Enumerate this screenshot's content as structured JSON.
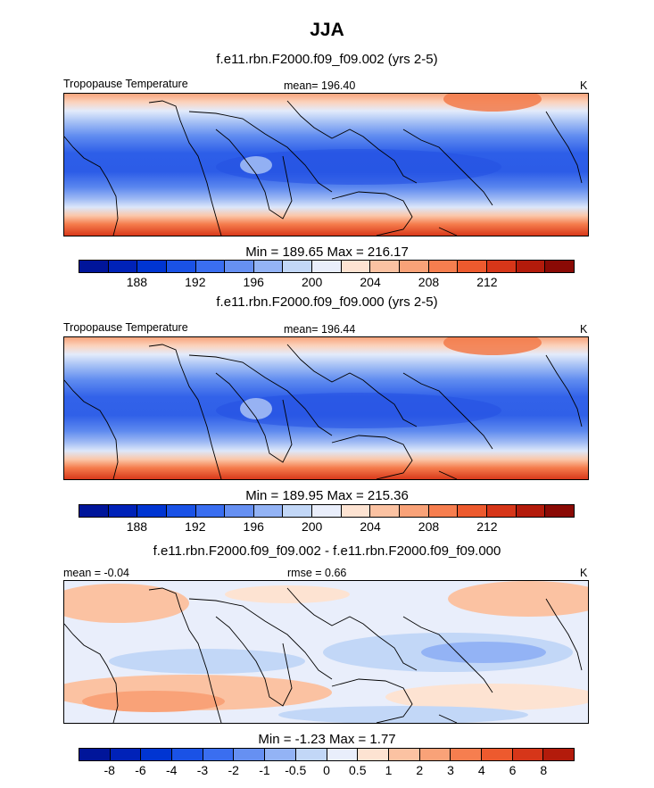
{
  "figure_title": "JJA",
  "colorbar_temp_colors": [
    "#00159a",
    "#0022b8",
    "#0035d2",
    "#1a52e6",
    "#3a6ef0",
    "#6690f2",
    "#93b3f5",
    "#c2d7f7",
    "#e9eefb",
    "#fde3d2",
    "#fbc2a2",
    "#f9a278",
    "#f67e4f",
    "#ed5a2e",
    "#d63619",
    "#b31b0b",
    "#8a0a05"
  ],
  "colorbar_diff_colors": [
    "#00159a",
    "#0022b8",
    "#0035d2",
    "#1a52e6",
    "#3a6ef0",
    "#6690f2",
    "#93b3f5",
    "#c2d7f7",
    "#e9eefb",
    "#fde3d2",
    "#fbc2a2",
    "#f9a278",
    "#f67e4f",
    "#ed5a2e",
    "#d63619",
    "#b31b0b",
    "#8a0a05"
  ],
  "chart_data": [
    {
      "type": "heatmap",
      "title": "f.e11.rbn.F2000.f09_f09.002 (yrs 2-5)",
      "left_label": "Tropopause Temperature",
      "center_label": "mean= 196.40",
      "units": "K",
      "mean": 196.4,
      "min": 189.65,
      "max": 216.17,
      "minmax_text": "Min = 189.65 Max = 216.17",
      "colorbar_ticks": [
        "188",
        "192",
        "196",
        "200",
        "204",
        "208",
        "212"
      ],
      "colorbar_levels": [
        186,
        188,
        190,
        192,
        194,
        196,
        198,
        200,
        202,
        204,
        206,
        208,
        210,
        212,
        214,
        216
      ]
    },
    {
      "type": "heatmap",
      "title": "f.e11.rbn.F2000.f09_f09.000 (yrs 2-5)",
      "left_label": "Tropopause Temperature",
      "center_label": "mean= 196.44",
      "units": "K",
      "mean": 196.44,
      "min": 189.95,
      "max": 215.36,
      "minmax_text": "Min = 189.95 Max = 215.36",
      "colorbar_ticks": [
        "188",
        "192",
        "196",
        "200",
        "204",
        "208",
        "212"
      ],
      "colorbar_levels": [
        186,
        188,
        190,
        192,
        194,
        196,
        198,
        200,
        202,
        204,
        206,
        208,
        210,
        212,
        214,
        216
      ]
    },
    {
      "type": "heatmap",
      "title": "f.e11.rbn.F2000.f09_f09.002 - f.e11.rbn.F2000.f09_f09.000",
      "left_label": "mean =  -0.04",
      "center_label": "rmse =   0.66",
      "units": "K",
      "mean": -0.04,
      "rmse": 0.66,
      "min": -1.23,
      "max": 1.77,
      "minmax_text": "Min =  -1.23 Max =   1.77",
      "colorbar_ticks": [
        "-8",
        "-6",
        "-4",
        "-3",
        "-2",
        "-1",
        "-0.5",
        "0",
        "0.5",
        "1",
        "2",
        "3",
        "4",
        "6",
        "8"
      ],
      "colorbar_levels": [
        -8,
        -6,
        -4,
        -3,
        -2,
        -1,
        -0.5,
        0,
        0.5,
        1,
        2,
        3,
        4,
        6,
        8
      ]
    }
  ]
}
